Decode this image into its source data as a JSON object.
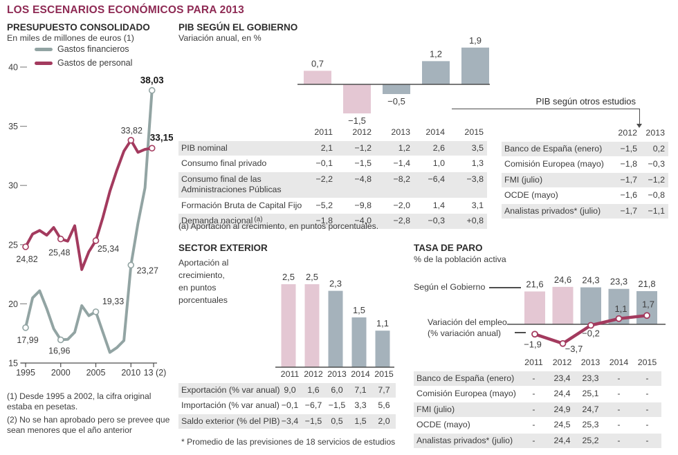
{
  "page": {
    "title": "LOS ESCENARIOS ECONÓMICOS PARA 2013"
  },
  "colors": {
    "accent_magenta": "#8e2a54",
    "line_gray": "#92a4a3",
    "line_magenta": "#a33a5e",
    "bar_pink": "#e4c7d3",
    "bar_blue": "#a5b2bb",
    "row_shade": "#e8e8e8",
    "axis": "#4d4d4d"
  },
  "presupuesto": {
    "heading": "PRESUPUESTO CONSOLIDADO",
    "subheading": "En miles de millones de euros (1)",
    "legend": [
      {
        "label": "Gastos financieros",
        "color": "#92a4a3"
      },
      {
        "label": "Gastos de personal",
        "color": "#a33a5e"
      }
    ],
    "footnote_1": "(1) Desde 1995 a 2002, la cifra original estaba en pesetas.",
    "footnote_2": "(2) No se han aprobado pero se prevee que sean menores que el año anterior"
  },
  "pib_gobierno": {
    "heading": "PIB SEGÚN EL GOBIERNO",
    "subheading": "Variación anual, en %",
    "table": {
      "years": [
        "2011",
        "2012",
        "2013",
        "2014",
        "2015"
      ],
      "rows": [
        {
          "label": "PIB nominal",
          "values": [
            "2,1",
            "−1,2",
            "1,2",
            "2,6",
            "3,5"
          ],
          "shaded": true
        },
        {
          "label": "Consumo final privado",
          "values": [
            "−0,1",
            "−1,5",
            "−1,4",
            "1,0",
            "1,3"
          ],
          "shaded": false
        },
        {
          "label": "Consumo final de las\nAdministraciones Públicas",
          "values": [
            "−2,2",
            "−4,8",
            "−8,2",
            "−6,4",
            "−3,8"
          ],
          "shaded": true
        },
        {
          "label": "Formación Bruta de Capital Fijo",
          "values": [
            "−5,2",
            "−9,8",
            "−2,0",
            "1,4",
            "3,1"
          ],
          "shaded": false
        },
        {
          "label": "Demanda nacional",
          "sup": "(a)",
          "values": [
            "−1,8",
            "−4,0",
            "−2,8",
            "−0,3",
            "+0,8"
          ],
          "shaded": true
        }
      ],
      "footnote": "(a) Aportación al crecimiento, en puntos porcentuales."
    }
  },
  "otros_estudios": {
    "heading": "PIB según otros estudios",
    "years": [
      "2012",
      "2013"
    ],
    "rows": [
      {
        "label": "Banco de España (enero)",
        "values": [
          "−1,5",
          "0,2"
        ],
        "shaded": true
      },
      {
        "label": "Comisión Europea (mayo)",
        "values": [
          "−1,8",
          "−0,3"
        ],
        "shaded": false
      },
      {
        "label": "FMI (julio)",
        "values": [
          "−1,7",
          "−1,2"
        ],
        "shaded": true
      },
      {
        "label": "OCDE (mayo)",
        "values": [
          "−1,6",
          "−0,8"
        ],
        "shaded": false
      },
      {
        "label": "Analistas privados* (julio)",
        "values": [
          "−1,7",
          "−1,1"
        ],
        "shaded": true
      }
    ]
  },
  "sector_exterior": {
    "heading": "SECTOR EXTERIOR",
    "note": "Aportación al\ncrecimiento,\nen puntos\nporcentuales",
    "table": {
      "years": [
        "2011",
        "2012",
        "2013",
        "2014",
        "2015"
      ],
      "rows": [
        {
          "label": "Exportación (% var anual)",
          "values": [
            "9,0",
            "1,6",
            "6,0",
            "7,1",
            "7,7"
          ],
          "shaded": true
        },
        {
          "label": "Importación (% var anual)",
          "values": [
            "−0,1",
            "−6,7",
            "−1,5",
            "3,3",
            "5,6"
          ],
          "shaded": false
        },
        {
          "label": "Saldo exterior (% del PIB)",
          "values": [
            "−3,4",
            "−1,5",
            "0,5",
            "1,5",
            "2,0"
          ],
          "shaded": true
        }
      ]
    },
    "footnote": "* Promedio de las previsiones de 18 servicios de estudios"
  },
  "tasa_paro": {
    "heading": "TASA DE PARO",
    "subheading": "% de la población activa",
    "label_gobierno": "Según el Gobierno",
    "label_empleo": "Variación del empleo\n(% variación anual)",
    "table": {
      "years": [
        "2011",
        "2012",
        "2013",
        "2014",
        "2015"
      ],
      "rows": [
        {
          "label": "Banco de España (enero)",
          "values": [
            "-",
            "23,4",
            "23,3",
            "-",
            "-"
          ],
          "shaded": true
        },
        {
          "label": "Comisión Europea (mayo)",
          "values": [
            "-",
            "24,4",
            "25,1",
            "-",
            "-"
          ],
          "shaded": false
        },
        {
          "label": "FMI (julio)",
          "values": [
            "-",
            "24,9",
            "24,7",
            "-",
            "-"
          ],
          "shaded": true
        },
        {
          "label": "OCDE (mayo)",
          "values": [
            "-",
            "24,5",
            "25,3",
            "-",
            "-"
          ],
          "shaded": false
        },
        {
          "label": "Analistas privados* (julio)",
          "values": [
            "-",
            "24,4",
            "25,2",
            "-",
            "-"
          ],
          "shaded": true
        }
      ]
    }
  },
  "chart_data": [
    {
      "id": "presupuesto",
      "type": "line",
      "title": "PRESUPUESTO CONSOLIDADO",
      "ylabel": "En miles de millones de euros",
      "ylim": [
        15,
        40
      ],
      "yticks": [
        15,
        20,
        25,
        30,
        35,
        40
      ],
      "xticklabels": [
        "1995",
        "2000",
        "2005",
        "2010",
        "13 (2)"
      ],
      "series": [
        {
          "name": "Gastos financieros",
          "color": "#92a4a3",
          "x": [
            1995,
            1996,
            1997,
            1998,
            1999,
            2000,
            2001,
            2002,
            2003,
            2004,
            2005,
            2006,
            2007,
            2008,
            2009,
            2010,
            2011,
            2012,
            2013
          ],
          "values": [
            17.99,
            20.5,
            21.1,
            19.6,
            17.9,
            16.96,
            17.0,
            17.6,
            19.85,
            19.0,
            19.33,
            17.6,
            15.9,
            16.3,
            16.9,
            23.27,
            26.8,
            29.8,
            38.03
          ],
          "markers": [
            {
              "x": 1995,
              "v": 17.99,
              "label": "17,99"
            },
            {
              "x": 2000,
              "v": 16.96,
              "label": "16,96"
            },
            {
              "x": 2005,
              "v": 19.33,
              "label": "19,33"
            },
            {
              "x": 2010,
              "v": 23.27,
              "label": "23,27"
            },
            {
              "x": 2013,
              "v": 38.03,
              "label": "38,03",
              "bold": true
            }
          ]
        },
        {
          "name": "Gastos de personal",
          "color": "#a33a5e",
          "x": [
            1995,
            1996,
            1997,
            1998,
            1999,
            2000,
            2001,
            2002,
            2003,
            2004,
            2005,
            2006,
            2007,
            2008,
            2009,
            2010,
            2011,
            2012,
            2013
          ],
          "values": [
            24.82,
            25.9,
            26.2,
            25.8,
            26.45,
            25.48,
            25.3,
            26.6,
            22.9,
            24.4,
            25.34,
            27.3,
            29.5,
            31.3,
            32.9,
            33.82,
            32.8,
            33.05,
            33.15
          ],
          "markers": [
            {
              "x": 1995,
              "v": 24.82,
              "label": "24,82"
            },
            {
              "x": 2000,
              "v": 25.48,
              "label": "25,48"
            },
            {
              "x": 2005,
              "v": 25.34,
              "label": "25,34"
            },
            {
              "x": 2010,
              "v": 33.82,
              "label": "33,82"
            },
            {
              "x": 2013,
              "v": 33.15,
              "label": "33,15",
              "bold": true
            }
          ]
        }
      ]
    },
    {
      "id": "pib_anual",
      "type": "bar",
      "title": "PIB SEGÚN EL GOBIERNO",
      "ylabel": "Variación anual, en %",
      "categories": [
        "2011",
        "2012",
        "2013",
        "2014",
        "2015"
      ],
      "values": [
        0.7,
        -1.5,
        -0.5,
        1.2,
        1.9
      ],
      "labels": [
        "0,7",
        "−1,5",
        "−0,5",
        "1,2",
        "1,9"
      ],
      "colors": [
        "pink",
        "pink",
        "blue",
        "blue",
        "blue"
      ]
    },
    {
      "id": "sector",
      "type": "bar",
      "title": "SECTOR EXTERIOR",
      "ylabel": "Aportación al crecimiento, en puntos porcentuales",
      "categories": [
        "2011",
        "2012",
        "2013",
        "2014",
        "2015"
      ],
      "values": [
        2.5,
        2.5,
        2.3,
        1.5,
        1.1
      ],
      "labels": [
        "2,5",
        "2,5",
        "2,3",
        "1,5",
        "1,1"
      ],
      "colors": [
        "pink",
        "pink",
        "blue",
        "blue",
        "blue"
      ]
    },
    {
      "id": "paro",
      "type": "bar+line",
      "title": "TASA DE PARO",
      "ylabel": "% de la población activa",
      "categories": [
        "2011",
        "2012",
        "2013",
        "2014",
        "2015"
      ],
      "bars": {
        "name": "Según el Gobierno",
        "values": [
          21.6,
          24.6,
          24.3,
          23.3,
          21.8
        ],
        "labels": [
          "21,6",
          "24,6",
          "24,3",
          "23,3",
          "21,8"
        ],
        "colors": [
          "pink",
          "pink",
          "blue",
          "blue",
          "blue"
        ]
      },
      "line": {
        "name": "Variación del empleo (% variación anual)",
        "color": "#a33a5e",
        "values": [
          -1.9,
          -3.7,
          -0.2,
          1.1,
          1.7
        ],
        "labels": [
          "−1,9",
          "−3,7",
          "−0,2",
          "1,1",
          "1,7"
        ]
      }
    }
  ]
}
